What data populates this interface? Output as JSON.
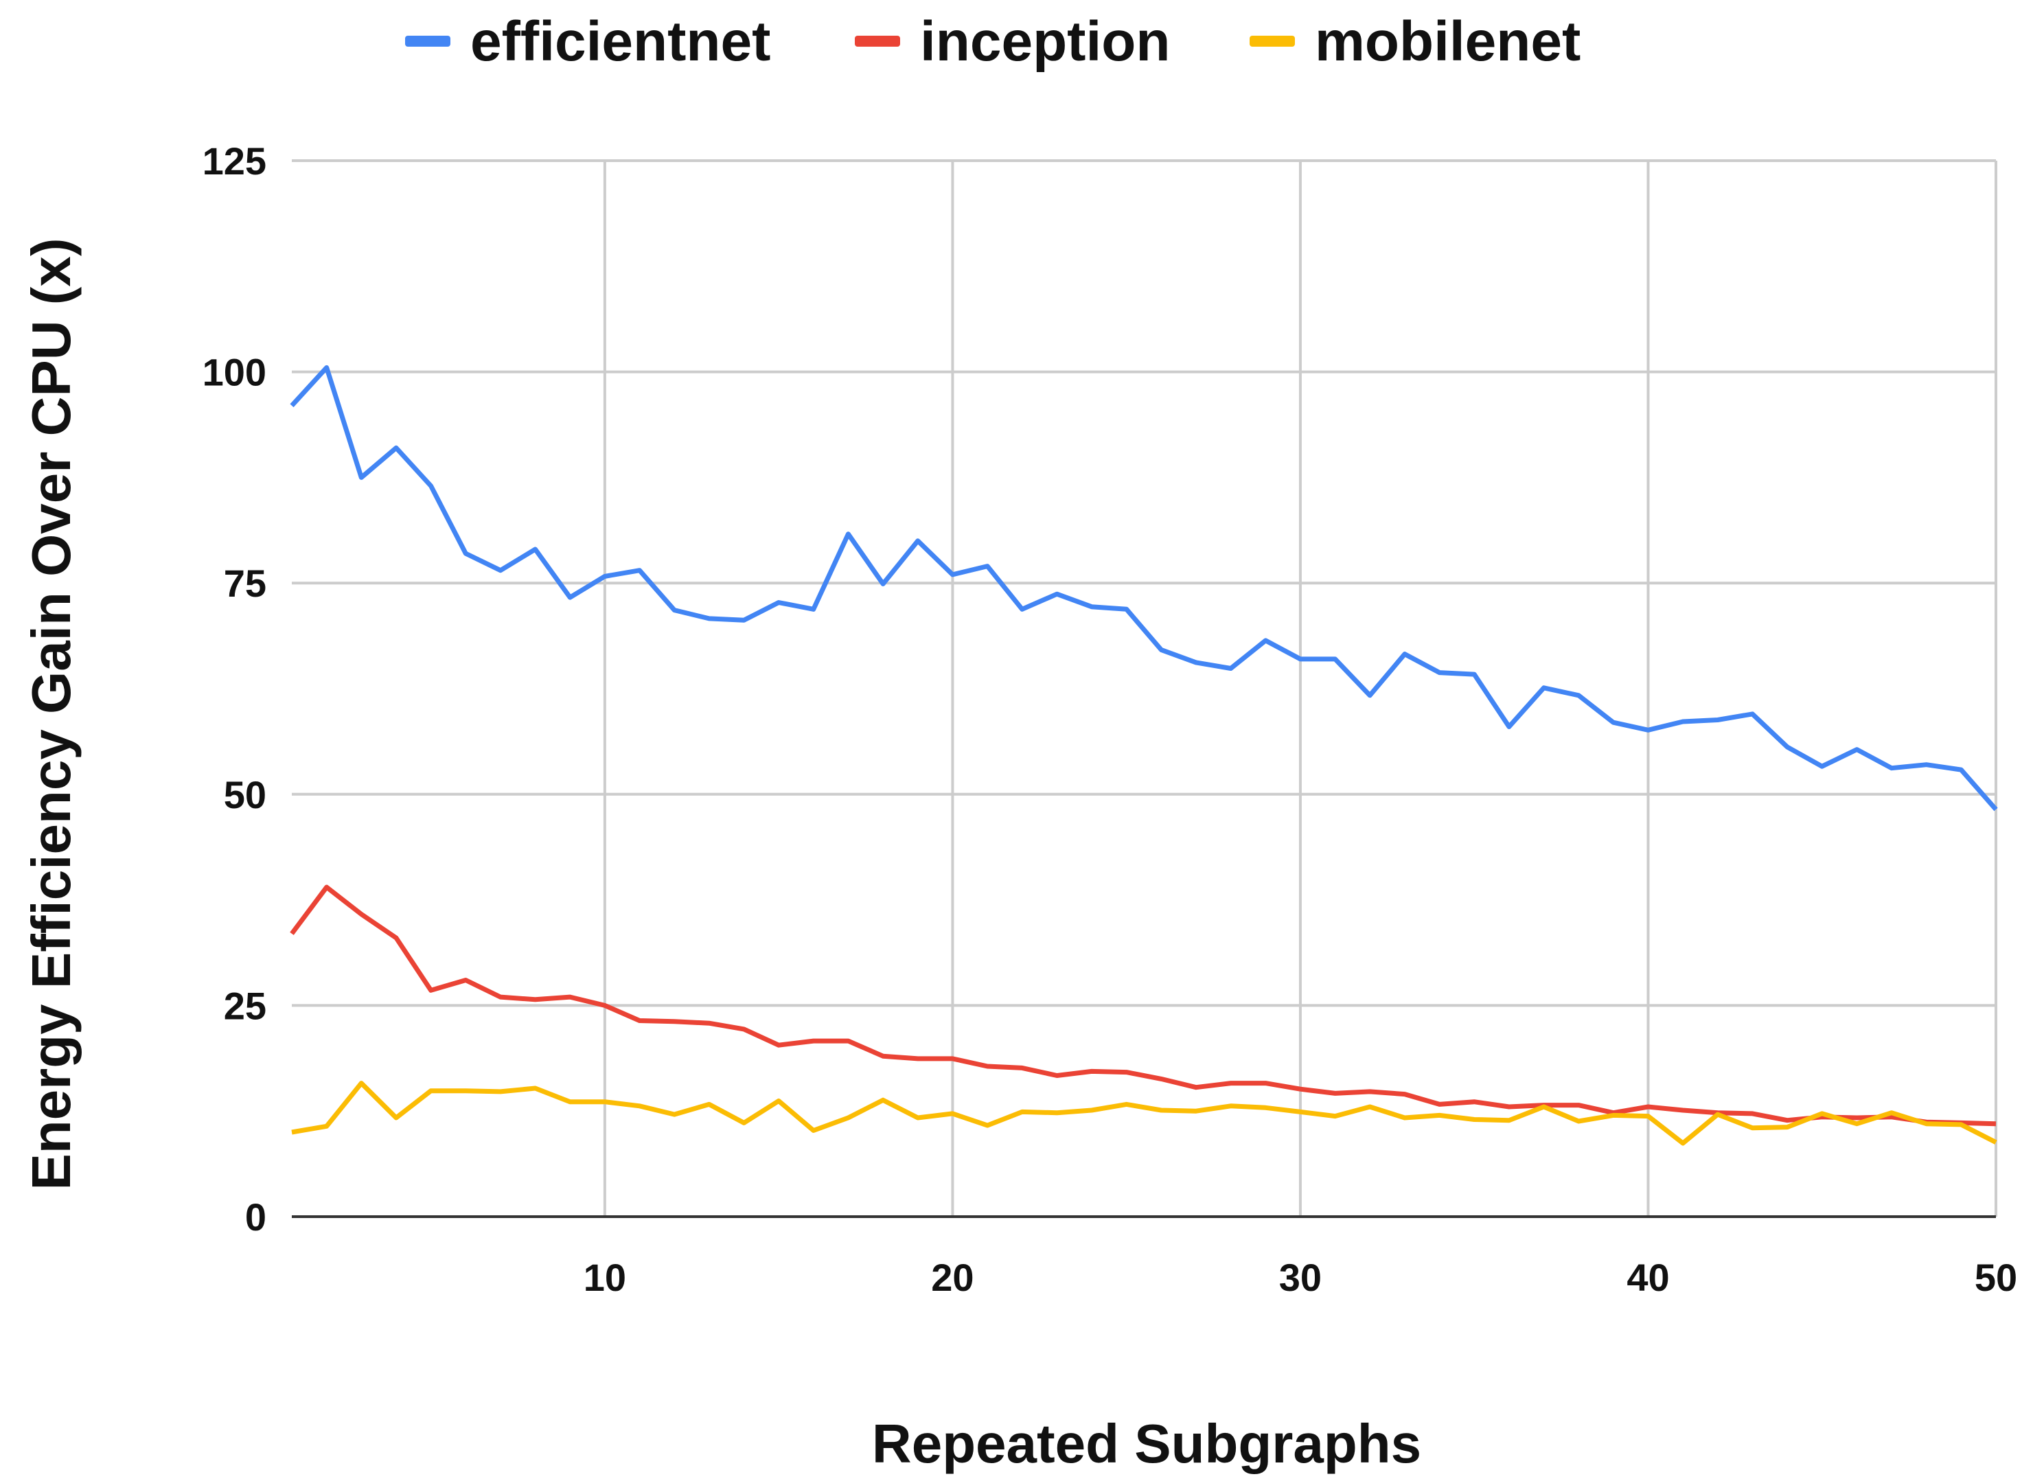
{
  "chart_data": {
    "type": "line",
    "xlabel": "Repeated Subgraphs",
    "ylabel": "Energy Efficiency Gain Over CPU (x)",
    "xlim": [
      1,
      50
    ],
    "ylim": [
      0,
      125
    ],
    "x_ticks": [
      10,
      20,
      30,
      40,
      50
    ],
    "y_ticks": [
      0,
      25,
      50,
      75,
      100,
      125
    ],
    "grid": true,
    "legend_position": "top",
    "x": [
      1,
      2,
      3,
      4,
      5,
      6,
      7,
      8,
      9,
      10,
      11,
      12,
      13,
      14,
      15,
      16,
      17,
      18,
      19,
      20,
      21,
      22,
      23,
      24,
      25,
      26,
      27,
      28,
      29,
      30,
      31,
      32,
      33,
      34,
      35,
      36,
      37,
      38,
      39,
      40,
      41,
      42,
      43,
      44,
      45,
      46,
      47,
      48,
      49,
      50
    ],
    "series": [
      {
        "name": "efficientnet",
        "color": "#4285F4",
        "values": [
          96,
          100.5,
          87.5,
          91,
          86.5,
          78.5,
          76.5,
          79,
          73.3,
          75.8,
          76.5,
          71.8,
          70.8,
          70.6,
          72.7,
          71.9,
          80.8,
          74.9,
          80,
          76,
          77,
          71.9,
          73.7,
          72.2,
          71.9,
          67.1,
          65.6,
          64.9,
          68.2,
          66,
          66,
          61.7,
          66.6,
          64.4,
          64.2,
          58,
          62.6,
          61.7,
          58.5,
          57.6,
          58.6,
          58.8,
          59.5,
          55.6,
          53.3,
          55.3,
          53.1,
          53.5,
          52.9,
          48.2
        ]
      },
      {
        "name": "inception",
        "color": "#EA4335",
        "values": [
          33.5,
          39,
          35.8,
          33,
          26.8,
          28,
          26,
          25.7,
          26,
          25,
          23.2,
          23.1,
          22.9,
          22.2,
          20.3,
          20.8,
          20.8,
          19,
          18.7,
          18.7,
          17.8,
          17.6,
          16.7,
          17.2,
          17.1,
          16.3,
          15.3,
          15.8,
          15.8,
          15.1,
          14.6,
          14.8,
          14.5,
          13.3,
          13.6,
          13,
          13.2,
          13.2,
          12.3,
          13,
          12.6,
          12.3,
          12.2,
          11.4,
          11.8,
          11.7,
          11.8,
          11.2,
          11.1,
          11
        ]
      },
      {
        "name": "mobilenet",
        "color": "#FBBC04",
        "values": [
          10,
          10.7,
          15.8,
          11.7,
          14.9,
          14.9,
          14.8,
          15.2,
          13.6,
          13.6,
          13.1,
          12.1,
          13.3,
          11.1,
          13.7,
          10.2,
          11.7,
          13.8,
          11.7,
          12.2,
          10.8,
          12.4,
          12.3,
          12.6,
          13.3,
          12.6,
          12.5,
          13.1,
          12.9,
          12.4,
          11.9,
          13,
          11.7,
          12,
          11.5,
          11.4,
          13,
          11.3,
          12,
          11.9,
          8.7,
          12.1,
          10.5,
          10.6,
          12.2,
          11,
          12.3,
          11,
          10.9,
          8.8
        ]
      }
    ]
  }
}
